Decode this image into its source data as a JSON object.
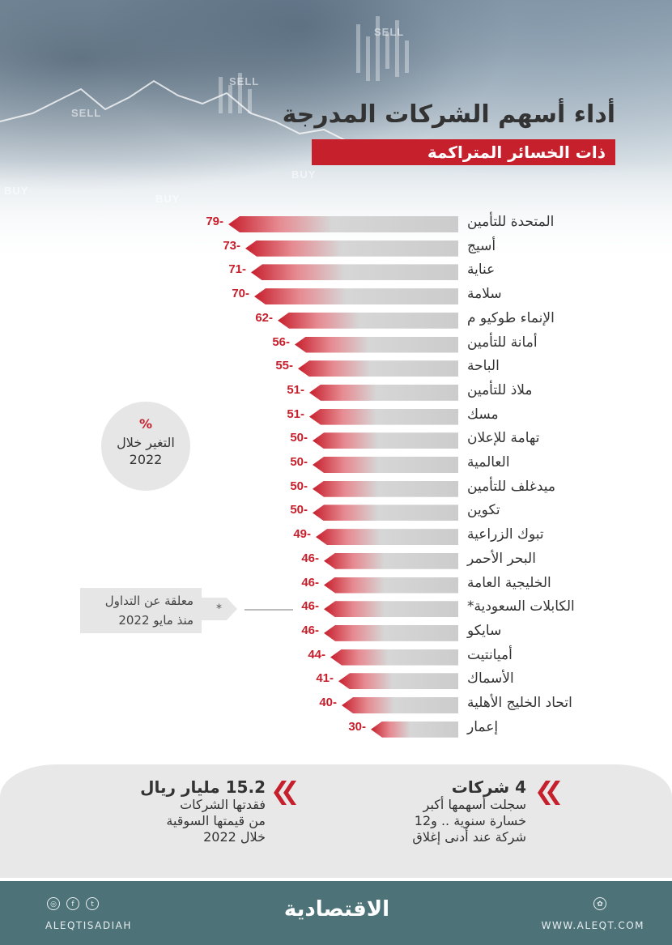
{
  "header": {
    "title_line1": "أداء أسهم الشركات المدرجة",
    "title_line2": "ذات الخسائر المتراكمة"
  },
  "hero_words": [
    "SELL",
    "SELL",
    "SELL",
    "BUY",
    "BUY",
    "BUY"
  ],
  "chart_data": {
    "type": "bar",
    "orientation": "horizontal",
    "categories": [
      "المتحدة للتأمين",
      "أسيج",
      "عناية",
      "سلامة",
      "الإنماء طوكيو م",
      "أمانة للتأمين",
      "الباحة",
      "ملاذ للتأمين",
      "مسك",
      "تهامة للإعلان",
      "العالمية",
      "ميدغلف للتأمين",
      "تكوين",
      "تبوك الزراعية",
      "البحر الأحمر",
      "الخليجية العامة",
      "الكابلات السعودية*",
      "سايكو",
      "أميانتيت",
      "الأسماك",
      "اتحاد الخليج الأهلية",
      "إعمار"
    ],
    "values": [
      -79,
      -73,
      -71,
      -70,
      -62,
      -56,
      -55,
      -51,
      -51,
      -50,
      -50,
      -50,
      -50,
      -49,
      -46,
      -46,
      -46,
      -46,
      -44,
      -41,
      -40,
      -30
    ],
    "value_labels": [
      "79-",
      "73-",
      "71-",
      "70-",
      "62-",
      "56-",
      "55-",
      "51-",
      "51-",
      "50-",
      "50-",
      "50-",
      "50-",
      "49-",
      "46-",
      "46-",
      "46-",
      "46-",
      "44-",
      "41-",
      "40-",
      "30-"
    ],
    "bar_color": "#c7202d",
    "track_color": "#cccccc"
  },
  "legend": {
    "percent": "%",
    "line1": "التغير خلال",
    "line2": "2022"
  },
  "note": {
    "star": "*",
    "line1": "معلقة عن التداول",
    "line2": "منذ مايو 2022"
  },
  "stats": {
    "right": {
      "head": "4 شركات",
      "lines": [
        "سجلت أسهمها أكبر",
        "خسارة سنوية .. و12",
        "شركة عند أدنى إغلاق"
      ]
    },
    "left": {
      "head": "15.2 مليار ريال",
      "lines": [
        "فقدتها الشركات",
        "من قيمتها السوقية",
        "خلال 2022"
      ]
    }
  },
  "footer": {
    "handle": "ALEQTISADIAH",
    "brand": "الاقتصادية",
    "site": "WWW.ALEQT.COM",
    "social_icons": [
      "instagram-icon",
      "facebook-icon",
      "twitter-icon"
    ]
  },
  "colors": {
    "accent": "#c7202d",
    "footer": "#4d7379",
    "panel": "#e8e8e8"
  }
}
